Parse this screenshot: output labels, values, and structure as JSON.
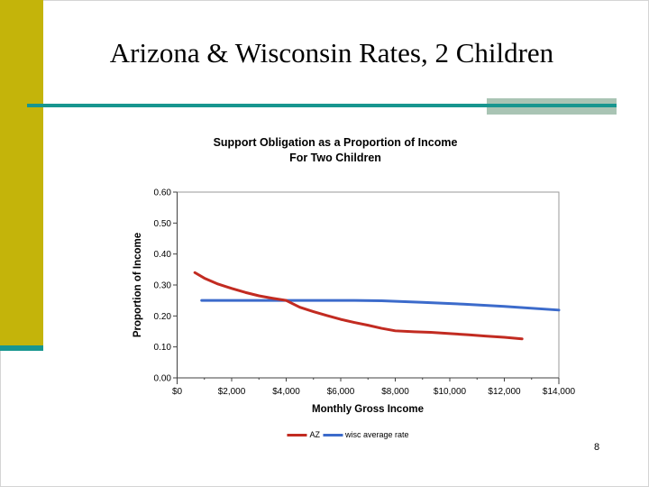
{
  "slide": {
    "title": "Arizona & Wisconsin Rates, 2 Children",
    "page_number": "8"
  },
  "theme": {
    "accent_bar_color": "#C4B40A",
    "rule_color": "#17968F",
    "rule_highlight_color": "#A9C4B4"
  },
  "chart_data": {
    "type": "line",
    "title": "Support Obligation as a Proportion of Income For Two Children",
    "title_line1": "Support Obligation as a Proportion of  Income",
    "title_line2": "For Two Children",
    "xlabel": "Monthly Gross Income",
    "ylabel": "Proportion of Income",
    "xlim": [
      0,
      14000
    ],
    "ylim": [
      0,
      0.6
    ],
    "grid": false,
    "legend_position": "bottom-center",
    "x_minor_tick_step": 1000,
    "x_ticks": [
      {
        "value": 0,
        "label": "$0"
      },
      {
        "value": 2000,
        "label": "$2,000"
      },
      {
        "value": 4000,
        "label": "$4,000"
      },
      {
        "value": 6000,
        "label": "$6,000"
      },
      {
        "value": 8000,
        "label": "$8,000"
      },
      {
        "value": 10000,
        "label": "$10,000"
      },
      {
        "value": 12000,
        "label": "$12,000"
      },
      {
        "value": 14000,
        "label": "$14,000"
      }
    ],
    "y_ticks": [
      {
        "value": 0.0,
        "label": "0.00"
      },
      {
        "value": 0.1,
        "label": "0.10"
      },
      {
        "value": 0.2,
        "label": "0.20"
      },
      {
        "value": 0.3,
        "label": "0.30"
      },
      {
        "value": 0.4,
        "label": "0.40"
      },
      {
        "value": 0.5,
        "label": "0.50"
      },
      {
        "value": 0.6,
        "label": "0.60"
      }
    ],
    "series": [
      {
        "name": "AZ",
        "color": "#C22B21",
        "x": [
          650,
          1000,
          1500,
          2000,
          2500,
          3000,
          3500,
          4000,
          4500,
          5000,
          5500,
          6000,
          6500,
          7000,
          7500,
          8000,
          8700,
          9300,
          10000,
          10700,
          11300,
          12000,
          12650
        ],
        "y": [
          0.34,
          0.322,
          0.303,
          0.289,
          0.276,
          0.265,
          0.257,
          0.25,
          0.228,
          0.214,
          0.201,
          0.189,
          0.179,
          0.17,
          0.16,
          0.152,
          0.149,
          0.147,
          0.143,
          0.139,
          0.135,
          0.131,
          0.126
        ]
      },
      {
        "name": "wisc average rate",
        "color": "#3C6BCB",
        "x": [
          900,
          4000,
          6500,
          7500,
          9000,
          10500,
          12000,
          14000
        ],
        "y": [
          0.25,
          0.25,
          0.25,
          0.249,
          0.244,
          0.238,
          0.231,
          0.219
        ]
      }
    ]
  }
}
